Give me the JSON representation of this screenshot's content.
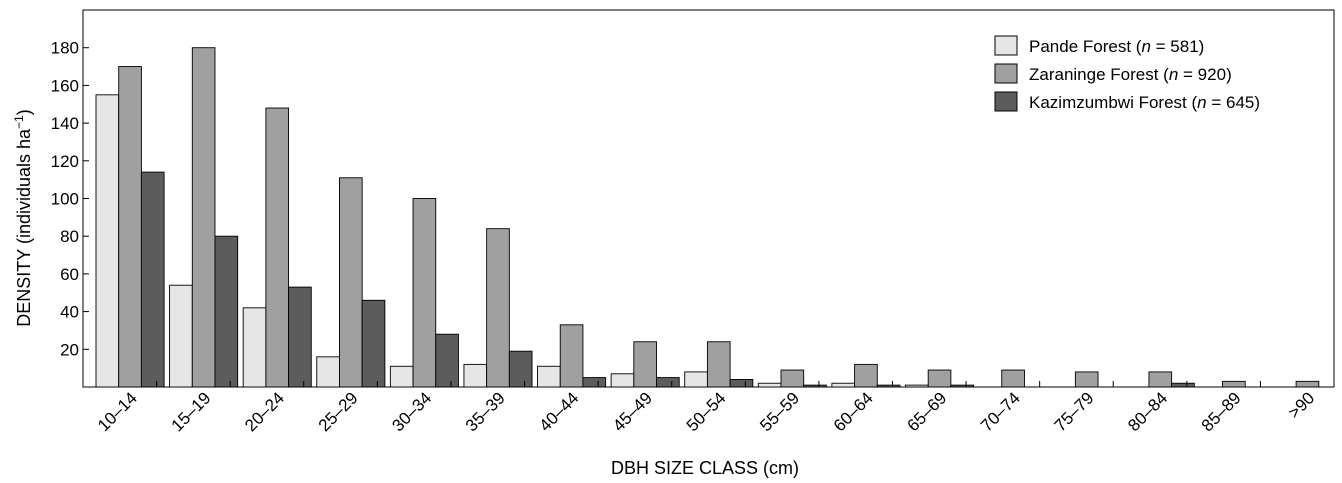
{
  "chart_data": {
    "type": "bar",
    "xlabel": "DBH SIZE CLASS (cm)",
    "ylabel_parts": [
      "DENSITY (individuals ha",
      "−1",
      ")"
    ],
    "ylim": [
      0,
      200
    ],
    "yticks": [
      20,
      40,
      60,
      80,
      100,
      120,
      140,
      160,
      180
    ],
    "grid": false,
    "legend_position": "top-right",
    "categories": [
      "10–14",
      "15–19",
      "20–24",
      "25–29",
      "30–34",
      "35–39",
      "40–44",
      "45–49",
      "50–54",
      "55–59",
      "60–64",
      "65–69",
      "70–74",
      "75–79",
      "80–84",
      "85–89",
      ">90"
    ],
    "series": [
      {
        "name": "Pande Forest",
        "n_label": "n",
        "n_value": " = 581",
        "color": "#e6e6e6",
        "values": [
          155,
          54,
          42,
          16,
          11,
          12,
          11,
          7,
          8,
          2,
          2,
          1,
          0,
          0,
          0,
          0,
          0
        ]
      },
      {
        "name": "Zaraninge Forest",
        "n_label": "n",
        "n_value": " = 920",
        "color": "#a0a0a0",
        "values": [
          170,
          180,
          148,
          111,
          100,
          84,
          33,
          24,
          24,
          9,
          12,
          9,
          9,
          8,
          8,
          3,
          3
        ]
      },
      {
        "name": "Kazimzumbwi Forest",
        "n_label": "n",
        "n_value": " = 645",
        "color": "#5c5c5c",
        "values": [
          114,
          80,
          53,
          46,
          28,
          19,
          5,
          5,
          4,
          1,
          1,
          1,
          0,
          0,
          2,
          0,
          0
        ]
      }
    ]
  }
}
